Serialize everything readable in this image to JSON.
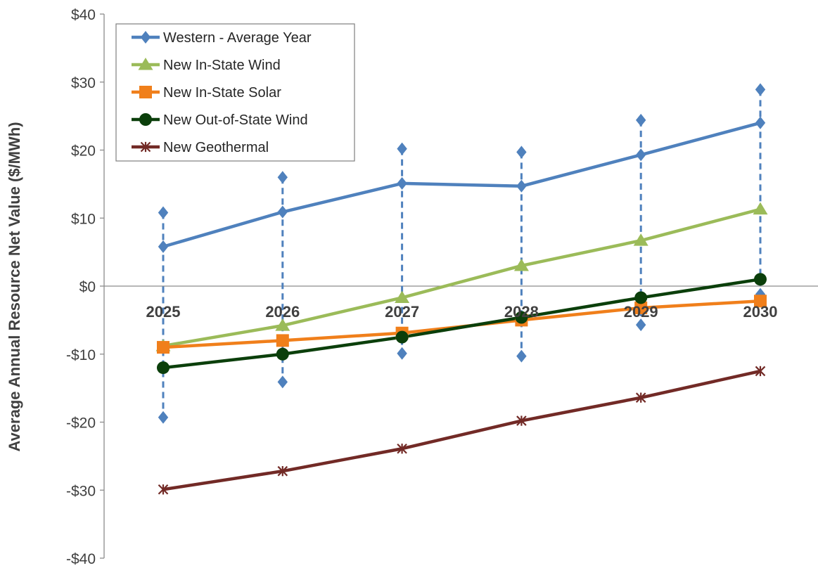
{
  "chart_data": {
    "type": "line",
    "title": "",
    "xlabel": "",
    "ylabel": "Average Annual Resource Net Value ($/MWh)",
    "x": [
      "2025",
      "2026",
      "2027",
      "2028",
      "2029",
      "2030"
    ],
    "ylim": [
      -40,
      40
    ],
    "yticks": [
      40,
      30,
      20,
      10,
      0,
      -10,
      -20,
      -30,
      -40
    ],
    "ytick_labels": [
      "$40",
      "$30",
      "$20",
      "$10",
      "$0",
      "-$10",
      "-$20",
      "-$30",
      "-$40"
    ],
    "grid": false,
    "legend_position": "top-left",
    "series": [
      {
        "name": "Western - Average Year",
        "marker": "diamond",
        "color": "#4F81BD",
        "values": [
          5.8,
          10.9,
          15.1,
          14.7,
          19.3,
          24.0
        ],
        "range_high": [
          10.8,
          16.0,
          20.2,
          19.7,
          24.4,
          28.9
        ],
        "range_low": [
          -19.3,
          -14.1,
          -9.9,
          -10.3,
          -5.7,
          -1.2
        ]
      },
      {
        "name": "New In-State Wind",
        "marker": "triangle",
        "color": "#9BBB59",
        "values": [
          -8.8,
          -5.8,
          -1.7,
          3.0,
          6.7,
          11.3
        ]
      },
      {
        "name": "New In-State Solar",
        "marker": "square",
        "color": "#F07F1B",
        "values": [
          -9.0,
          -8.0,
          -6.9,
          -5.0,
          -3.2,
          -2.2
        ]
      },
      {
        "name": "New Out-of-State Wind",
        "marker": "circle",
        "color": "#0B3F0B",
        "values": [
          -12.0,
          -10.0,
          -7.5,
          -4.6,
          -1.7,
          1.0
        ]
      },
      {
        "name": "New Geothermal",
        "marker": "star",
        "color": "#722A26",
        "values": [
          -29.9,
          -27.2,
          -23.9,
          -19.8,
          -16.4,
          -12.5
        ]
      }
    ]
  }
}
